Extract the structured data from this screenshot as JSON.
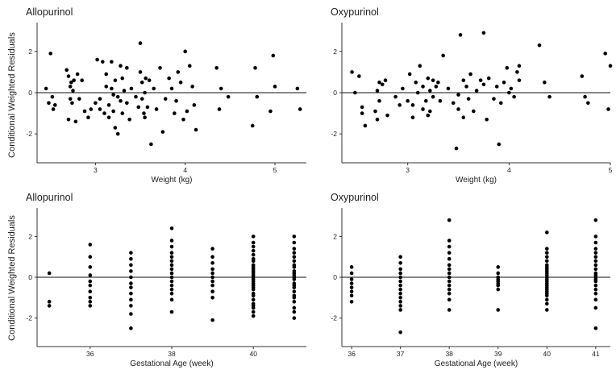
{
  "figure": {
    "shared_ylabel": "Conditional Weighted Residuals"
  },
  "chart_data": [
    {
      "type": "scatter",
      "title": "Allopurinol",
      "xlabel": "Weight (kg)",
      "ylabel": "Conditional Weighted Residuals",
      "xlim": [
        2.35,
        5.35
      ],
      "ylim": [
        -3.4,
        3.4
      ],
      "xticks": [
        3,
        4,
        5
      ],
      "yticks": [
        -2,
        0,
        2
      ],
      "reference_line": 0,
      "x": [
        2.45,
        2.48,
        2.5,
        2.52,
        2.55,
        2.53,
        2.68,
        2.7,
        2.72,
        2.72,
        2.74,
        2.76,
        2.78,
        2.8,
        2.7,
        2.73,
        2.75,
        2.82,
        2.85,
        2.88,
        2.92,
        2.95,
        3.0,
        3.02,
        3.05,
        3.05,
        3.08,
        3.1,
        3.12,
        3.12,
        3.15,
        3.15,
        3.18,
        3.18,
        3.2,
        3.2,
        3.22,
        3.22,
        3.25,
        3.25,
        3.28,
        3.28,
        3.3,
        3.3,
        3.32,
        3.35,
        3.35,
        3.38,
        3.4,
        3.45,
        3.48,
        3.5,
        3.5,
        3.52,
        3.52,
        3.54,
        3.55,
        3.55,
        3.56,
        3.58,
        3.6,
        3.62,
        3.65,
        3.68,
        3.72,
        3.75,
        3.78,
        3.82,
        3.85,
        3.88,
        3.9,
        3.92,
        3.95,
        3.98,
        4.0,
        4.02,
        4.05,
        4.08,
        4.1,
        4.12,
        4.35,
        4.38,
        4.4,
        4.48,
        4.75,
        4.78,
        4.8,
        4.95,
        4.98,
        5.0,
        5.25,
        5.28
      ],
      "y": [
        0.2,
        -0.5,
        1.9,
        -0.2,
        -0.6,
        -0.8,
        1.1,
        0.8,
        0.3,
        -0.3,
        -0.5,
        0.6,
        -1.4,
        0.9,
        -1.3,
        0.5,
        0.1,
        -0.3,
        0.6,
        -0.9,
        -1.2,
        -0.8,
        -0.5,
        1.6,
        -0.3,
        -0.8,
        1.5,
        -1.0,
        0.9,
        0.3,
        -0.6,
        -1.2,
        1.5,
        0.2,
        -0.1,
        -0.9,
        0.6,
        -1.7,
        -0.2,
        -2.0,
        1.3,
        -0.4,
        0.7,
        -1.0,
        0.1,
        1.2,
        -0.5,
        -1.3,
        0.2,
        -0.2,
        -0.7,
        2.4,
        1.0,
        0.5,
        -0.3,
        -1.0,
        0.0,
        -1.2,
        0.7,
        -0.7,
        0.6,
        -2.5,
        0.2,
        -0.8,
        1.2,
        -1.9,
        -0.3,
        0.7,
        0.2,
        -1.0,
        -0.4,
        1.0,
        0.5,
        -1.3,
        2.0,
        -0.9,
        1.3,
        0.3,
        -0.6,
        -1.8,
        1.2,
        -0.8,
        0.2,
        -0.2,
        -1.6,
        1.2,
        -0.2,
        -0.9,
        1.8,
        0.3,
        0.2,
        -0.8
      ]
    },
    {
      "type": "scatter",
      "title": "Oxypurinol",
      "xlabel": "Weight (kg)",
      "ylabel": "",
      "xlim": [
        2.35,
        5.0
      ],
      "ylim": [
        -3.4,
        3.4
      ],
      "xticks": [
        3,
        4,
        5
      ],
      "yticks": [
        -2,
        0,
        2
      ],
      "reference_line": 0,
      "x": [
        2.45,
        2.48,
        2.52,
        2.55,
        2.55,
        2.58,
        2.68,
        2.7,
        2.7,
        2.72,
        2.72,
        2.75,
        2.78,
        2.8,
        2.88,
        2.92,
        2.95,
        3.0,
        3.02,
        3.05,
        3.05,
        3.08,
        3.1,
        3.12,
        3.15,
        3.15,
        3.18,
        3.2,
        3.2,
        3.22,
        3.22,
        3.25,
        3.25,
        3.28,
        3.3,
        3.32,
        3.35,
        3.4,
        3.45,
        3.48,
        3.5,
        3.5,
        3.52,
        3.55,
        3.55,
        3.58,
        3.6,
        3.62,
        3.65,
        3.68,
        3.72,
        3.75,
        3.75,
        3.78,
        3.8,
        3.85,
        3.88,
        3.9,
        3.92,
        3.95,
        3.98,
        4.0,
        4.02,
        4.05,
        4.08,
        4.1,
        4.1,
        4.3,
        4.35,
        4.4,
        4.72,
        4.75,
        4.78,
        4.95,
        4.98,
        5.0
      ],
      "y": [
        1.0,
        0.0,
        0.8,
        -0.7,
        -1.0,
        -1.6,
        -0.9,
        0.1,
        -1.3,
        0.5,
        -0.4,
        0.4,
        0.6,
        -1.1,
        -0.2,
        -0.6,
        0.2,
        -0.4,
        0.9,
        -0.6,
        -1.2,
        0.5,
        0.0,
        1.3,
        -0.8,
        0.3,
        -0.4,
        0.7,
        -1.1,
        0.1,
        -0.9,
        0.6,
        -0.2,
        0.3,
        0.5,
        -0.4,
        1.8,
        0.2,
        -0.5,
        -2.7,
        -0.1,
        -0.8,
        2.8,
        0.6,
        -1.2,
        0.3,
        -0.3,
        0.9,
        -0.9,
        0.1,
        0.6,
        2.9,
        0.4,
        -1.3,
        0.7,
        -0.3,
        0.3,
        -2.5,
        -0.5,
        0.5,
        1.2,
        0.0,
        0.2,
        -0.2,
        1.0,
        0.6,
        1.3,
        2.3,
        0.5,
        -0.2,
        0.8,
        -0.2,
        -0.5,
        1.9,
        -0.8,
        1.3
      ]
    },
    {
      "type": "scatter",
      "title": "Allopurinol",
      "xlabel": "Gestational Age (week)",
      "ylabel": "Conditional Weighted Residuals",
      "xlim": [
        34.7,
        41.3
      ],
      "ylim": [
        -3.4,
        3.4
      ],
      "xticks": [
        36,
        38,
        40
      ],
      "yticks": [
        -2,
        0,
        2
      ],
      "reference_line": 0,
      "x": [
        35,
        35,
        35,
        36,
        36,
        36,
        36,
        36,
        36,
        36,
        36,
        36,
        36,
        37,
        37,
        37,
        37,
        37,
        37,
        37,
        37,
        37,
        37,
        37,
        37,
        38,
        38,
        38,
        38,
        38,
        38,
        38,
        38,
        38,
        38,
        38,
        38,
        38,
        38,
        38,
        38,
        39,
        39,
        39,
        39,
        39,
        39,
        39,
        39,
        39,
        39,
        39,
        40,
        40,
        40,
        40,
        40,
        40,
        40,
        40,
        40,
        40,
        40,
        40,
        40,
        40,
        40,
        40,
        40,
        40,
        40,
        40,
        40,
        40,
        40,
        40,
        40,
        40,
        40,
        40,
        41,
        41,
        41,
        41,
        41,
        41,
        41,
        41,
        41,
        41,
        41,
        41,
        41,
        41,
        41,
        41,
        41,
        41,
        41,
        41,
        41,
        41,
        41
      ],
      "y": [
        0.2,
        -1.2,
        -1.4,
        1.6,
        1.0,
        0.5,
        0.1,
        -0.2,
        -0.4,
        -0.7,
        -1.0,
        -1.2,
        -1.4,
        1.2,
        0.9,
        0.6,
        0.3,
        0.0,
        -0.3,
        -0.5,
        -0.8,
        -1.1,
        -1.4,
        -1.8,
        -2.5,
        2.4,
        1.8,
        1.5,
        1.2,
        1.0,
        0.8,
        0.6,
        0.4,
        0.2,
        0.0,
        -0.2,
        -0.4,
        -0.6,
        -0.8,
        -1.1,
        -1.7,
        1.4,
        1.0,
        0.7,
        0.4,
        0.2,
        0.0,
        -0.2,
        -0.4,
        -0.7,
        -1.0,
        -2.1,
        2.0,
        1.7,
        1.5,
        1.3,
        1.1,
        0.9,
        0.8,
        0.6,
        0.5,
        0.4,
        0.3,
        0.2,
        0.1,
        0.0,
        -0.1,
        -0.2,
        -0.3,
        -0.4,
        -0.5,
        -0.6,
        -0.8,
        -0.9,
        -1.1,
        -1.3,
        -1.5,
        -1.7,
        -1.9,
        -1.4,
        2.0,
        1.7,
        1.4,
        1.2,
        1.0,
        0.8,
        0.6,
        0.5,
        0.3,
        0.2,
        0.1,
        0.0,
        -0.1,
        -0.3,
        -0.4,
        -0.5,
        -0.7,
        -0.9,
        -1.0,
        -1.2,
        -1.5,
        -1.7,
        -2.0
      ]
    },
    {
      "type": "scatter",
      "title": "Oxypurinol",
      "xlabel": "Gestational Age (week)",
      "ylabel": "",
      "xlim": [
        35.8,
        41.3
      ],
      "ylim": [
        -3.4,
        3.4
      ],
      "xticks": [
        36,
        37,
        38,
        39,
        40,
        41
      ],
      "yticks": [
        -2,
        0,
        2
      ],
      "reference_line": 0,
      "x": [
        36,
        36,
        36,
        36,
        36,
        36,
        36,
        36,
        37,
        37,
        37,
        37,
        37,
        37,
        37,
        37,
        37,
        37,
        37,
        37,
        37,
        37,
        38,
        38,
        38,
        38,
        38,
        38,
        38,
        38,
        38,
        38,
        38,
        38,
        38,
        38,
        38,
        39,
        39,
        39,
        39,
        39,
        39,
        39,
        39,
        39,
        40,
        40,
        40,
        40,
        40,
        40,
        40,
        40,
        40,
        40,
        40,
        40,
        40,
        40,
        40,
        40,
        40,
        40,
        40,
        40,
        40,
        40,
        40,
        40,
        41,
        41,
        41,
        41,
        41,
        41,
        41,
        41,
        41,
        41,
        41,
        41,
        41,
        41,
        41,
        41,
        41,
        41,
        41,
        41
      ],
      "y": [
        0.5,
        0.2,
        -0.1,
        -0.3,
        -0.5,
        -0.7,
        -0.9,
        -1.2,
        1.0,
        0.7,
        0.4,
        0.2,
        0.0,
        -0.2,
        -0.4,
        -0.6,
        -0.8,
        -1.0,
        -1.2,
        -1.4,
        -1.6,
        -2.7,
        2.8,
        1.8,
        1.5,
        1.2,
        0.9,
        0.6,
        0.4,
        0.2,
        0.0,
        -0.2,
        -0.4,
        -0.6,
        -0.8,
        -1.1,
        -1.6,
        0.5,
        0.2,
        0.0,
        -0.1,
        -0.2,
        -0.3,
        -0.4,
        -0.6,
        -1.6,
        2.2,
        1.4,
        1.2,
        1.0,
        0.8,
        0.6,
        0.5,
        0.4,
        0.3,
        0.2,
        0.1,
        0.0,
        -0.1,
        -0.2,
        -0.3,
        -0.4,
        -0.5,
        -0.6,
        -0.7,
        -0.8,
        -0.9,
        -1.1,
        -1.3,
        -1.6,
        2.8,
        2.0,
        1.7,
        1.4,
        1.2,
        1.0,
        0.8,
        0.6,
        0.4,
        0.2,
        0.1,
        0.0,
        -0.1,
        -0.2,
        -0.4,
        -0.6,
        -0.8,
        -1.1,
        -1.5,
        -2.5
      ]
    }
  ]
}
